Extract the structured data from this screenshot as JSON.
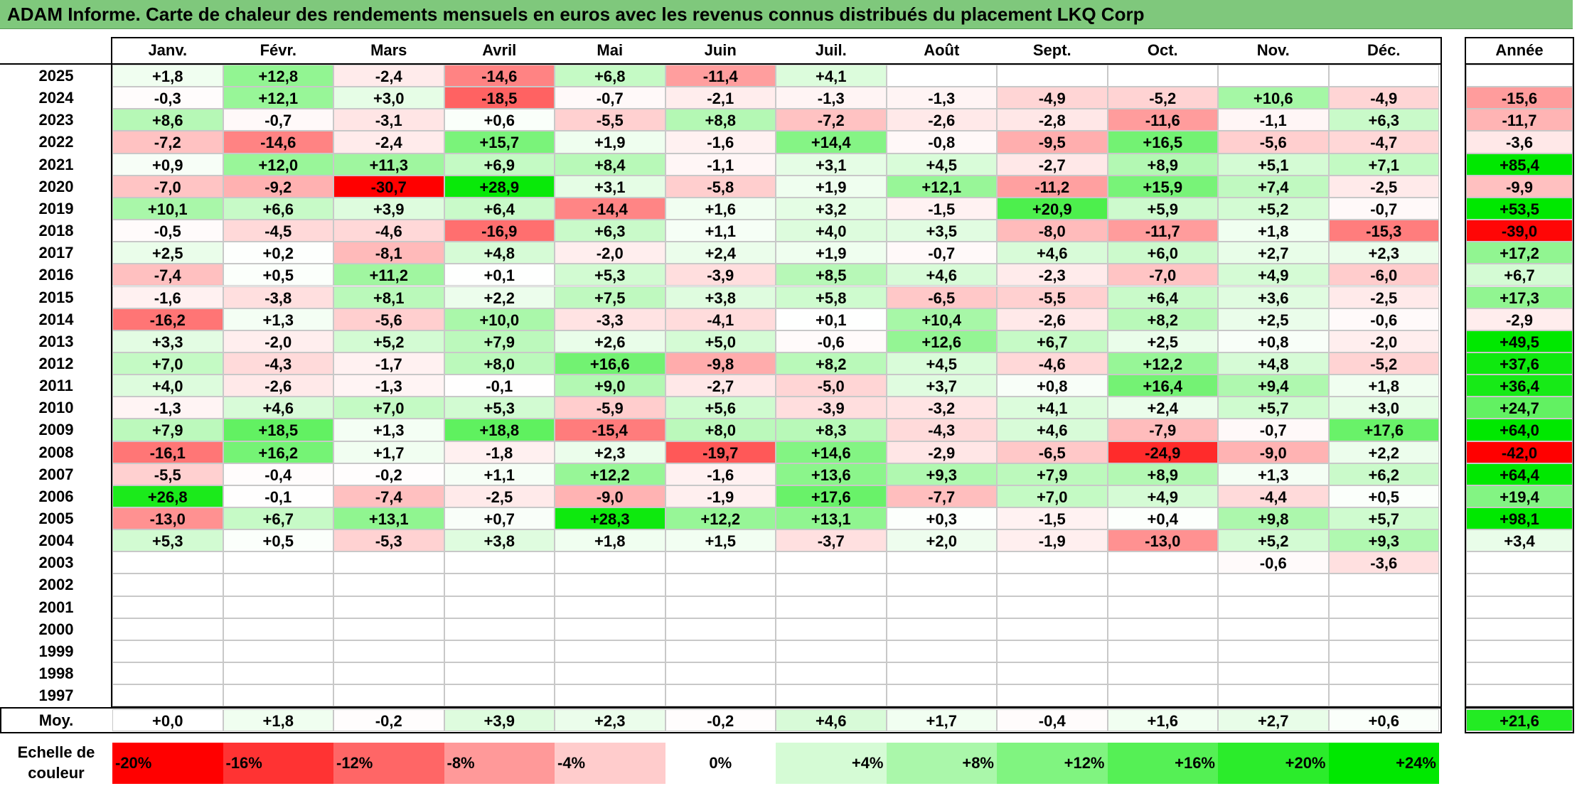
{
  "title": "ADAM Informe. Carte de chaleur des rendements mensuels en euros avec les revenus connus distribués du placement LKQ Corp",
  "chart_data": {
    "type": "heatmap",
    "title": "ADAM Informe. Carte de chaleur des rendements mensuels en euros avec les revenus connus distribués du placement LKQ Corp",
    "columns": [
      "Janv.",
      "Févr.",
      "Mars",
      "Avril",
      "Mai",
      "Juin",
      "Juil.",
      "Août",
      "Sept.",
      "Oct.",
      "Nov.",
      "Déc."
    ],
    "annual_header": "Année",
    "rows": [
      {
        "year": "2025",
        "values": [
          "+1,8",
          "+12,8",
          "-2,4",
          "-14,6",
          "+6,8",
          "-11,4",
          "+4,1",
          "",
          "",
          "",
          "",
          ""
        ],
        "annual": ""
      },
      {
        "year": "2024",
        "values": [
          "-0,3",
          "+12,1",
          "+3,0",
          "-18,5",
          "-0,7",
          "-2,1",
          "-1,3",
          "-1,3",
          "-4,9",
          "-5,2",
          "+10,6",
          "-4,9"
        ],
        "annual": "-15,6"
      },
      {
        "year": "2023",
        "values": [
          "+8,6",
          "-0,7",
          "-3,1",
          "+0,6",
          "-5,5",
          "+8,8",
          "-7,2",
          "-2,6",
          "-2,8",
          "-11,6",
          "-1,1",
          "+6,3"
        ],
        "annual": "-11,7"
      },
      {
        "year": "2022",
        "values": [
          "-7,2",
          "-14,6",
          "-2,4",
          "+15,7",
          "+1,9",
          "-1,6",
          "+14,4",
          "-0,8",
          "-9,5",
          "+16,5",
          "-5,6",
          "-4,7"
        ],
        "annual": "-3,6"
      },
      {
        "year": "2021",
        "values": [
          "+0,9",
          "+12,0",
          "+11,3",
          "+6,9",
          "+8,4",
          "-1,1",
          "+3,1",
          "+4,5",
          "-2,7",
          "+8,9",
          "+5,1",
          "+7,1"
        ],
        "annual": "+85,4"
      },
      {
        "year": "2020",
        "values": [
          "-7,0",
          "-9,2",
          "-30,7",
          "+28,9",
          "+3,1",
          "-5,8",
          "+1,9",
          "+12,1",
          "-11,2",
          "+15,9",
          "+7,4",
          "-2,5"
        ],
        "annual": "-9,9"
      },
      {
        "year": "2019",
        "values": [
          "+10,1",
          "+6,6",
          "+3,9",
          "+6,4",
          "-14,4",
          "+1,6",
          "+3,2",
          "-1,5",
          "+20,9",
          "+5,9",
          "+5,2",
          "-0,7"
        ],
        "annual": "+53,5"
      },
      {
        "year": "2018",
        "values": [
          "-0,5",
          "-4,5",
          "-4,6",
          "-16,9",
          "+6,3",
          "+1,1",
          "+4,0",
          "+3,5",
          "-8,0",
          "-11,7",
          "+1,8",
          "-15,3"
        ],
        "annual": "-39,0"
      },
      {
        "year": "2017",
        "values": [
          "+2,5",
          "+0,2",
          "-8,1",
          "+4,8",
          "-2,0",
          "+2,4",
          "+1,9",
          "-0,7",
          "+4,6",
          "+6,0",
          "+2,7",
          "+2,3"
        ],
        "annual": "+17,2"
      },
      {
        "year": "2016",
        "values": [
          "-7,4",
          "+0,5",
          "+11,2",
          "+0,1",
          "+5,3",
          "-3,9",
          "+8,5",
          "+4,6",
          "-2,3",
          "-7,0",
          "+4,9",
          "-6,0"
        ],
        "annual": "+6,7"
      },
      {
        "year": "2015",
        "values": [
          "-1,6",
          "-3,8",
          "+8,1",
          "+2,2",
          "+7,5",
          "+3,8",
          "+5,8",
          "-6,5",
          "-5,5",
          "+6,4",
          "+3,6",
          "-2,5"
        ],
        "annual": "+17,3"
      },
      {
        "year": "2014",
        "values": [
          "-16,2",
          "+1,3",
          "-5,6",
          "+10,0",
          "-3,3",
          "-4,1",
          "+0,1",
          "+10,4",
          "-2,6",
          "+8,2",
          "+2,5",
          "-0,6"
        ],
        "annual": "-2,9"
      },
      {
        "year": "2013",
        "values": [
          "+3,3",
          "-2,0",
          "+5,2",
          "+7,9",
          "+2,6",
          "+5,0",
          "-0,6",
          "+12,6",
          "+6,7",
          "+2,5",
          "+0,8",
          "-2,0"
        ],
        "annual": "+49,5"
      },
      {
        "year": "2012",
        "values": [
          "+7,0",
          "-4,3",
          "-1,7",
          "+8,0",
          "+16,6",
          "-9,8",
          "+8,2",
          "+4,5",
          "-4,6",
          "+12,2",
          "+4,8",
          "-5,2"
        ],
        "annual": "+37,6"
      },
      {
        "year": "2011",
        "values": [
          "+4,0",
          "-2,6",
          "-1,3",
          "-0,1",
          "+9,0",
          "-2,7",
          "-5,0",
          "+3,7",
          "+0,8",
          "+16,4",
          "+9,4",
          "+1,8"
        ],
        "annual": "+36,4"
      },
      {
        "year": "2010",
        "values": [
          "-1,3",
          "+4,6",
          "+7,0",
          "+5,3",
          "-5,9",
          "+5,6",
          "-3,9",
          "-3,2",
          "+4,1",
          "+2,4",
          "+5,7",
          "+3,0"
        ],
        "annual": "+24,7"
      },
      {
        "year": "2009",
        "values": [
          "+7,9",
          "+18,5",
          "+1,3",
          "+18,8",
          "-15,4",
          "+8,0",
          "+8,3",
          "-4,3",
          "+4,6",
          "-7,9",
          "-0,7",
          "+17,6"
        ],
        "annual": "+64,0"
      },
      {
        "year": "2008",
        "values": [
          "-16,1",
          "+16,2",
          "+1,7",
          "-1,8",
          "+2,3",
          "-19,7",
          "+14,6",
          "-2,9",
          "-6,5",
          "-24,9",
          "-9,0",
          "+2,2"
        ],
        "annual": "-42,0"
      },
      {
        "year": "2007",
        "values": [
          "-5,5",
          "-0,4",
          "-0,2",
          "+1,1",
          "+12,2",
          "-1,6",
          "+13,6",
          "+9,3",
          "+7,9",
          "+8,9",
          "+1,3",
          "+6,2"
        ],
        "annual": "+64,4"
      },
      {
        "year": "2006",
        "values": [
          "+26,8",
          "-0,1",
          "-7,4",
          "-2,5",
          "-9,0",
          "-1,9",
          "+17,6",
          "-7,7",
          "+7,0",
          "+4,9",
          "-4,4",
          "+0,5"
        ],
        "annual": "+19,4"
      },
      {
        "year": "2005",
        "values": [
          "-13,0",
          "+6,7",
          "+13,1",
          "+0,7",
          "+28,3",
          "+12,2",
          "+13,1",
          "+0,3",
          "-1,5",
          "+0,4",
          "+9,8",
          "+5,7"
        ],
        "annual": "+98,1"
      },
      {
        "year": "2004",
        "values": [
          "+5,3",
          "+0,5",
          "-5,3",
          "+3,8",
          "+1,8",
          "+1,5",
          "-3,7",
          "+2,0",
          "-1,9",
          "-13,0",
          "+5,2",
          "+9,3"
        ],
        "annual": "+3,4"
      },
      {
        "year": "2003",
        "values": [
          "",
          "",
          "",
          "",
          "",
          "",
          "",
          "",
          "",
          "",
          "-0,6",
          "-3,6"
        ],
        "annual": ""
      },
      {
        "year": "2002",
        "values": [
          "",
          "",
          "",
          "",
          "",
          "",
          "",
          "",
          "",
          "",
          "",
          ""
        ],
        "annual": ""
      },
      {
        "year": "2001",
        "values": [
          "",
          "",
          "",
          "",
          "",
          "",
          "",
          "",
          "",
          "",
          "",
          ""
        ],
        "annual": ""
      },
      {
        "year": "2000",
        "values": [
          "",
          "",
          "",
          "",
          "",
          "",
          "",
          "",
          "",
          "",
          "",
          ""
        ],
        "annual": ""
      },
      {
        "year": "1999",
        "values": [
          "",
          "",
          "",
          "",
          "",
          "",
          "",
          "",
          "",
          "",
          "",
          ""
        ],
        "annual": ""
      },
      {
        "year": "1998",
        "values": [
          "",
          "",
          "",
          "",
          "",
          "",
          "",
          "",
          "",
          "",
          "",
          ""
        ],
        "annual": ""
      },
      {
        "year": "1997",
        "values": [
          "",
          "",
          "",
          "",
          "",
          "",
          "",
          "",
          "",
          "",
          "",
          ""
        ],
        "annual": ""
      }
    ],
    "average": {
      "label": "Moy.",
      "values": [
        "+0,0",
        "+1,8",
        "-0,2",
        "+3,9",
        "+2,3",
        "-0,2",
        "+4,6",
        "+1,7",
        "-0,4",
        "+1,6",
        "+2,7",
        "+0,6"
      ],
      "annual": "+21,6"
    },
    "color_scale": {
      "label": "Echelle de couleur",
      "stops": [
        "-20%",
        "-16%",
        "-12%",
        "-8%",
        "-4%",
        "0%",
        "+4%",
        "+8%",
        "+12%",
        "+16%",
        "+20%",
        "+24%"
      ],
      "stop_values": [
        -20,
        -16,
        -12,
        -8,
        -4,
        0,
        4,
        8,
        12,
        16,
        20,
        24
      ],
      "negative_color": "#ff0000",
      "positive_color": "#00e800",
      "neutral_color": "#ffffff"
    }
  }
}
